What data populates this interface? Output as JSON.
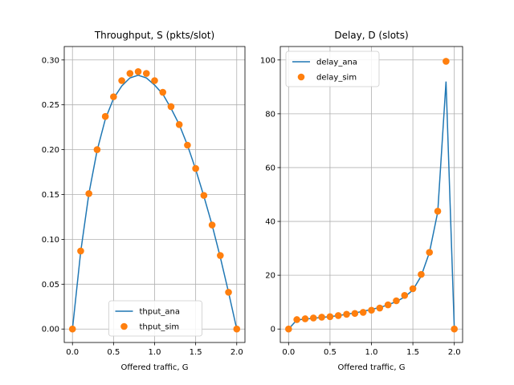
{
  "chart_data": [
    {
      "type": "line+scatter",
      "title": "Throughput, S (pkts/slot)",
      "xlabel": "Offered traffic, G",
      "ylabel": "",
      "xlim": [
        -0.1,
        2.1
      ],
      "ylim": [
        -0.015,
        0.315
      ],
      "grid": true,
      "legend_position": "lower-center",
      "xticks": [
        0.0,
        0.5,
        1.0,
        1.5,
        2.0
      ],
      "xtick_labels": [
        "0.0",
        "0.5",
        "1.0",
        "1.5",
        "2.0"
      ],
      "yticks": [
        0.0,
        0.05,
        0.1,
        0.15,
        0.2,
        0.25,
        0.3
      ],
      "ytick_labels": [
        "0.00",
        "0.05",
        "0.10",
        "0.15",
        "0.20",
        "0.25",
        "0.30"
      ],
      "series": [
        {
          "name": "thput_ana",
          "kind": "line",
          "color": "#1f77b4",
          "x": [
            0.0,
            0.1,
            0.2,
            0.3,
            0.4,
            0.5,
            0.6,
            0.7,
            0.8,
            0.9,
            1.0,
            1.1,
            1.2,
            1.3,
            1.4,
            1.5,
            1.6,
            1.7,
            1.8,
            1.9,
            2.0
          ],
          "y": [
            0.0,
            0.086,
            0.151,
            0.199,
            0.234,
            0.257,
            0.271,
            0.28,
            0.283,
            0.28,
            0.272,
            0.262,
            0.246,
            0.228,
            0.205,
            0.178,
            0.148,
            0.116,
            0.08,
            0.041,
            0.0
          ]
        },
        {
          "name": "thput_sim",
          "kind": "scatter",
          "color": "#ff7f0e",
          "x": [
            0.0,
            0.1,
            0.2,
            0.3,
            0.4,
            0.5,
            0.6,
            0.7,
            0.8,
            0.9,
            1.0,
            1.1,
            1.2,
            1.3,
            1.4,
            1.5,
            1.6,
            1.7,
            1.8,
            1.9,
            2.0
          ],
          "y": [
            0.0,
            0.087,
            0.151,
            0.2,
            0.237,
            0.259,
            0.277,
            0.285,
            0.287,
            0.285,
            0.277,
            0.264,
            0.248,
            0.228,
            0.205,
            0.179,
            0.149,
            0.116,
            0.082,
            0.041,
            0.0
          ]
        }
      ]
    },
    {
      "type": "line+scatter",
      "title": "Delay, D (slots)",
      "xlabel": "Offered traffic, G",
      "ylabel": "",
      "xlim": [
        -0.1,
        2.1
      ],
      "ylim": [
        -5,
        105
      ],
      "grid": true,
      "legend_position": "upper-left",
      "xticks": [
        0.0,
        0.5,
        1.0,
        1.5,
        2.0
      ],
      "xtick_labels": [
        "0.0",
        "0.5",
        "1.0",
        "1.5",
        "2.0"
      ],
      "yticks": [
        0,
        20,
        40,
        60,
        80,
        100
      ],
      "ytick_labels": [
        "0",
        "20",
        "40",
        "60",
        "80",
        "100"
      ],
      "series": [
        {
          "name": "delay_ana",
          "kind": "line",
          "color": "#1f77b4",
          "x": [
            0.0,
            0.1,
            0.2,
            0.3,
            0.4,
            0.5,
            0.6,
            0.7,
            0.8,
            0.9,
            1.0,
            1.1,
            1.2,
            1.3,
            1.4,
            1.5,
            1.6,
            1.7,
            1.8,
            1.9,
            2.0
          ],
          "y": [
            0.0,
            3.4,
            3.7,
            4.0,
            4.3,
            4.6,
            5.0,
            5.5,
            6.0,
            6.6,
            7.3,
            8.0,
            9.0,
            10.2,
            11.9,
            14.5,
            19.7,
            28.5,
            43.5,
            92.0,
            0.0
          ]
        },
        {
          "name": "delay_sim",
          "kind": "scatter",
          "color": "#ff7f0e",
          "x": [
            0.0,
            0.1,
            0.2,
            0.3,
            0.4,
            0.5,
            0.6,
            0.7,
            0.8,
            0.9,
            1.0,
            1.1,
            1.2,
            1.3,
            1.4,
            1.5,
            1.6,
            1.7,
            1.8,
            1.9,
            2.0
          ],
          "y": [
            0.0,
            3.5,
            3.8,
            4.1,
            4.4,
            4.6,
            5.0,
            5.5,
            5.8,
            6.2,
            7.0,
            7.8,
            9.0,
            10.5,
            12.5,
            15.0,
            20.3,
            28.5,
            43.8,
            99.5,
            0.0
          ]
        }
      ]
    }
  ]
}
